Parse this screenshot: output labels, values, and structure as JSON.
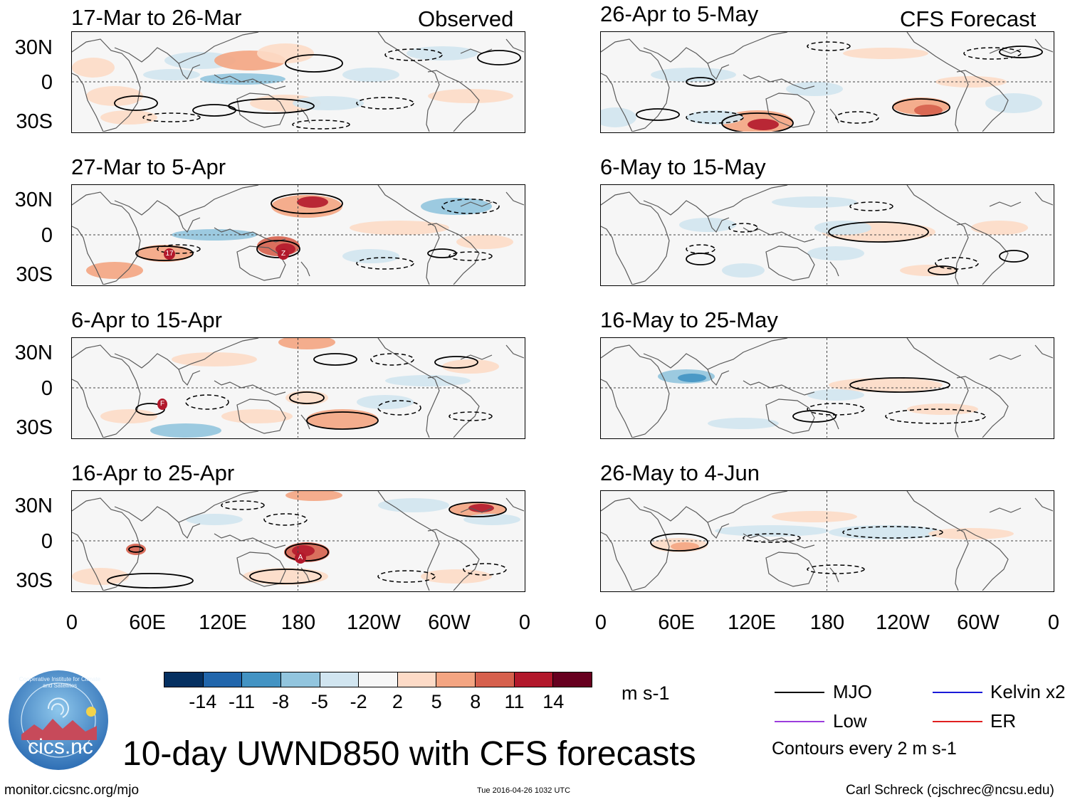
{
  "header": {
    "observed_label": "Observed",
    "forecast_label": "CFS Forecast"
  },
  "panels": {
    "observed": [
      {
        "title": "17-Mar to 26-Mar"
      },
      {
        "title": "27-Mar to 5-Apr"
      },
      {
        "title": "6-Apr to 15-Apr"
      },
      {
        "title": "16-Apr to 25-Apr"
      }
    ],
    "forecast": [
      {
        "title": "26-Apr to 5-May"
      },
      {
        "title": "6-May to 15-May"
      },
      {
        "title": "16-May to 25-May"
      },
      {
        "title": "26-May to 4-Jun"
      }
    ]
  },
  "axes": {
    "lat_labels": [
      "30N",
      "0",
      "30S"
    ],
    "lon_labels": [
      "0",
      "60E",
      "120E",
      "180",
      "120W",
      "60W",
      "0"
    ]
  },
  "storm_markers": {
    "p2a": "17",
    "p2b": "Z",
    "p3": "F",
    "p4": "A"
  },
  "chart_data": {
    "type": "heatmap",
    "title": "10-day UWND850 with CFS forecasts",
    "variable": "850-hPa zonal wind anomaly",
    "units": "m s-1",
    "lat_range": [
      -40,
      40
    ],
    "lon_range": [
      0,
      360
    ],
    "colorbar": {
      "ticks": [
        "-14",
        "-11",
        "-8",
        "-5",
        "-2",
        "2",
        "5",
        "8",
        "11",
        "14"
      ],
      "colors": [
        "#053061",
        "#2166ac",
        "#4393c3",
        "#92c5de",
        "#d1e5f0",
        "#f7f7f7",
        "#fddbc7",
        "#f4a582",
        "#d6604d",
        "#b2182b",
        "#67001f"
      ]
    },
    "contour_note": "Contours every 2 m s-1",
    "legend": [
      {
        "name": "MJO",
        "color": "#000000"
      },
      {
        "name": "Kelvin x2",
        "color": "#1a1ad8"
      },
      {
        "name": "Low",
        "color": "#9b3ddc"
      },
      {
        "name": "ER",
        "color": "#e02020"
      }
    ]
  },
  "footer": {
    "units_label": "m s-1",
    "logo_text": "cics.nc",
    "logo_ring_text": "Cooperative Institute for Climate and Satellites",
    "url": "monitor.cicsnc.org/mjo",
    "timestamp": "Tue 2016-04-26 1032 UTC",
    "author": "Carl Schreck (cjschrec@ncsu.edu)"
  }
}
